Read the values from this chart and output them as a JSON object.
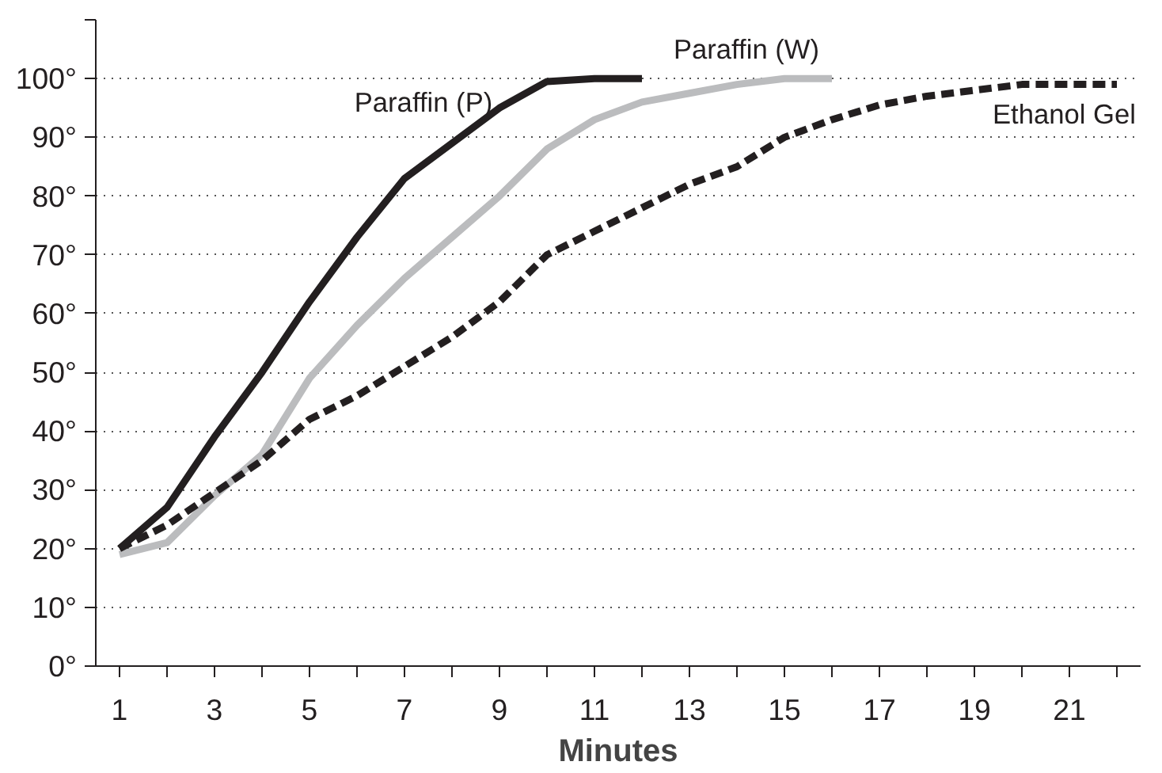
{
  "chart_data": {
    "type": "line",
    "xlabel": "Minutes",
    "x": [
      1,
      2,
      3,
      4,
      5,
      6,
      7,
      8,
      9,
      10,
      11,
      12,
      13,
      14,
      15,
      16,
      17,
      18,
      19,
      20,
      21,
      22
    ],
    "xlim": [
      0.5,
      22.5
    ],
    "xticks": [
      1,
      {
        "value": 2,
        "label": null
      },
      3,
      {
        "value": 4,
        "label": null
      },
      5,
      {
        "value": 6,
        "label": null
      },
      7,
      {
        "value": 8,
        "label": null
      },
      9,
      {
        "value": 10,
        "label": null
      },
      11,
      {
        "value": 12,
        "label": null
      },
      13,
      {
        "value": 14,
        "label": null
      },
      15,
      {
        "value": 16,
        "label": null
      },
      17,
      {
        "value": 18,
        "label": null
      },
      19,
      {
        "value": 20,
        "label": null
      },
      21,
      {
        "value": 22,
        "label": null
      }
    ],
    "ylim": [
      0,
      110
    ],
    "yticks": [
      {
        "value": 0,
        "label": "0°"
      },
      {
        "value": 10,
        "label": "10°"
      },
      {
        "value": 20,
        "label": "20°"
      },
      {
        "value": 30,
        "label": "30°"
      },
      {
        "value": 40,
        "label": "40°"
      },
      {
        "value": 50,
        "label": "50°"
      },
      {
        "value": 60,
        "label": "60°"
      },
      {
        "value": 70,
        "label": "70°"
      },
      {
        "value": 80,
        "label": "80°"
      },
      {
        "value": 90,
        "label": "90°"
      },
      {
        "value": 100,
        "label": "100°"
      },
      {
        "value": 110,
        "label": null
      }
    ],
    "grid": "y",
    "marker": "none",
    "series": [
      {
        "name": "Paraffin (P)",
        "color": "#231f20",
        "line_style": "solid",
        "values": [
          20,
          27,
          39,
          50,
          62,
          73,
          83,
          89,
          95,
          99.5,
          100,
          100,
          null,
          null,
          null,
          null,
          null,
          null,
          null,
          null,
          null,
          null
        ]
      },
      {
        "name": "Paraffin (W)",
        "color": "#bbbcbe",
        "line_style": "solid",
        "values": [
          19,
          21,
          29,
          36,
          49,
          58,
          66,
          73,
          80,
          88,
          93,
          96,
          97.5,
          99,
          100,
          100,
          null,
          null,
          null,
          null,
          null,
          null
        ]
      },
      {
        "name": "Ethanol Gel",
        "color": "#231f20",
        "line_style": "dashed",
        "values": [
          20,
          24,
          29.5,
          35,
          42,
          46,
          51,
          56,
          62,
          70,
          74,
          78,
          82,
          85,
          90,
          93,
          95.5,
          97,
          98,
          99,
          99,
          99
        ]
      }
    ]
  }
}
